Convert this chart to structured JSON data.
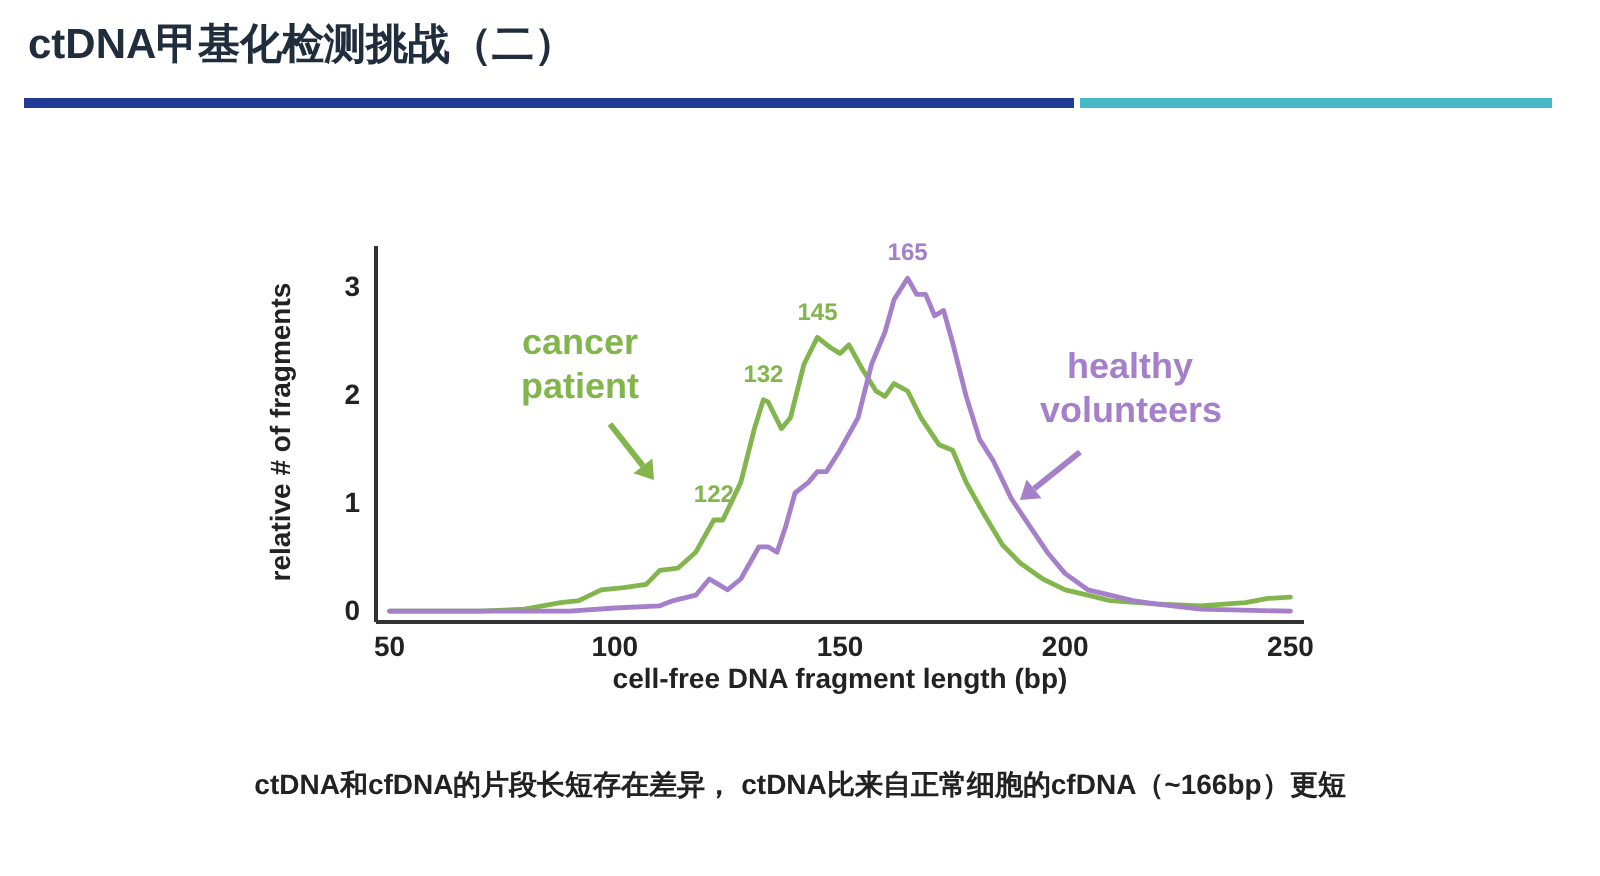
{
  "chart_data": {
    "type": "line",
    "title": "ctDNA甲基化检测挑战（二）",
    "xlabel": "cell-free DNA fragment length (bp)",
    "ylabel": "relative # of fragments",
    "xlim": [
      47,
      253
    ],
    "ylim": [
      -0.1,
      3.4
    ],
    "xticks": [
      50,
      100,
      150,
      200,
      250
    ],
    "yticks": [
      0,
      1,
      2,
      3
    ],
    "grid": false,
    "marker": "none",
    "line_style": "solid",
    "series": [
      {
        "name": "cancer patient",
        "color": "#82b54b",
        "x": [
          50,
          70,
          80,
          88,
          92,
          97,
          102,
          107,
          110,
          114,
          118,
          122,
          124,
          128,
          131,
          133,
          134,
          137,
          139,
          142,
          145,
          148,
          150,
          152,
          155,
          158,
          160,
          162,
          165,
          168,
          172,
          175,
          178,
          182,
          186,
          190,
          195,
          200,
          205,
          210,
          220,
          230,
          240,
          245,
          250
        ],
        "values": [
          0,
          0,
          0.02,
          0.08,
          0.1,
          0.2,
          0.22,
          0.25,
          0.38,
          0.4,
          0.55,
          0.85,
          0.85,
          1.2,
          1.7,
          1.97,
          1.95,
          1.7,
          1.8,
          2.3,
          2.55,
          2.45,
          2.4,
          2.48,
          2.25,
          2.05,
          2.0,
          2.12,
          2.05,
          1.8,
          1.55,
          1.5,
          1.2,
          0.9,
          0.62,
          0.45,
          0.3,
          0.2,
          0.15,
          0.1,
          0.07,
          0.05,
          0.08,
          0.12,
          0.13
        ]
      },
      {
        "name": "healthy volunteers",
        "color": "#a57fc9",
        "x": [
          50,
          90,
          100,
          110,
          113,
          118,
          121,
          123,
          125,
          128,
          132,
          134,
          136,
          138,
          140,
          143,
          145,
          147,
          150,
          152,
          154,
          157,
          160,
          162,
          165,
          167,
          169,
          171,
          173,
          175,
          178,
          181,
          184,
          188,
          192,
          196,
          200,
          205,
          210,
          215,
          220,
          230,
          250
        ],
        "values": [
          0,
          0,
          0.03,
          0.05,
          0.1,
          0.15,
          0.3,
          0.25,
          0.2,
          0.3,
          0.6,
          0.6,
          0.55,
          0.8,
          1.1,
          1.2,
          1.3,
          1.3,
          1.5,
          1.65,
          1.8,
          2.3,
          2.6,
          2.9,
          3.1,
          2.95,
          2.95,
          2.75,
          2.8,
          2.5,
          2.0,
          1.6,
          1.4,
          1.05,
          0.8,
          0.55,
          0.35,
          0.2,
          0.15,
          0.1,
          0.07,
          0.02,
          0
        ]
      }
    ],
    "annotations": [
      {
        "text": "122",
        "x": 122,
        "y": 0.85
      },
      {
        "text": "132",
        "x": 133,
        "y": 1.97
      },
      {
        "text": "145",
        "x": 145,
        "y": 2.55
      },
      {
        "text": "165",
        "x": 165,
        "y": 3.1
      },
      "ctDNA和cfDNA的片段长短存在差异， ctDNA比来自正常细胞的cfDNA（~166bp）更短"
    ]
  }
}
